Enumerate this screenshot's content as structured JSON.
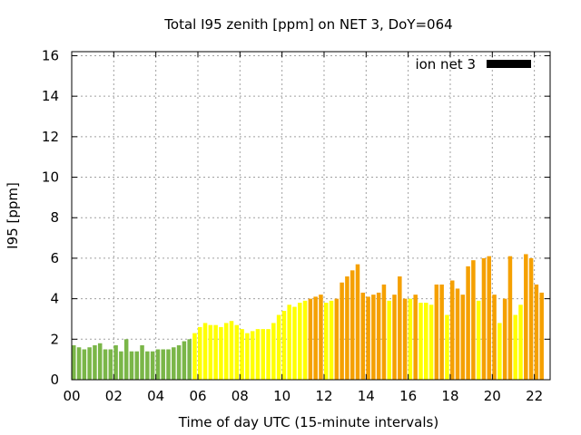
{
  "chart_data": {
    "type": "bar",
    "title": "Total I95 zenith [ppm] on NET 3, DoY=064",
    "xlabel": "Time of day UTC (15-minute intervals)",
    "ylabel": "I95 [ppm]",
    "xlim": [
      0,
      22.75
    ],
    "ylim": [
      0,
      16.2
    ],
    "bar_interval_hours": 0.25,
    "x_ticks": [
      {
        "value": 0,
        "label": "00"
      },
      {
        "value": 2,
        "label": "02"
      },
      {
        "value": 4,
        "label": "04"
      },
      {
        "value": 6,
        "label": "06"
      },
      {
        "value": 8,
        "label": "08"
      },
      {
        "value": 10,
        "label": "10"
      },
      {
        "value": 12,
        "label": "12"
      },
      {
        "value": 14,
        "label": "14"
      },
      {
        "value": 16,
        "label": "16"
      },
      {
        "value": 18,
        "label": "18"
      },
      {
        "value": 20,
        "label": "20"
      },
      {
        "value": 22,
        "label": "22"
      }
    ],
    "y_ticks": [
      {
        "value": 0,
        "label": "0"
      },
      {
        "value": 2,
        "label": "2"
      },
      {
        "value": 4,
        "label": "4"
      },
      {
        "value": 6,
        "label": "6"
      },
      {
        "value": 8,
        "label": "8"
      },
      {
        "value": 10,
        "label": "10"
      },
      {
        "value": 12,
        "label": "12"
      },
      {
        "value": 14,
        "label": "14"
      },
      {
        "value": 16,
        "label": "16"
      }
    ],
    "grid": true,
    "legend": {
      "label": "ion net 3",
      "color": "#000000",
      "placement": "top-right"
    },
    "colors": {
      "green": "#7ab648",
      "yellow": "#ffff00",
      "orange": "#f5a000"
    },
    "values": [
      1.7,
      1.6,
      1.5,
      1.6,
      1.7,
      1.8,
      1.5,
      1.5,
      1.7,
      1.4,
      2.0,
      1.4,
      1.4,
      1.7,
      1.4,
      1.4,
      1.5,
      1.5,
      1.5,
      1.6,
      1.7,
      1.9,
      2.0,
      2.3,
      2.6,
      2.8,
      2.7,
      2.7,
      2.6,
      2.8,
      2.9,
      2.7,
      2.5,
      2.3,
      2.4,
      2.5,
      2.5,
      2.5,
      2.8,
      3.2,
      3.4,
      3.7,
      3.6,
      3.8,
      3.9,
      4.0,
      4.1,
      4.2,
      3.8,
      3.9,
      4.0,
      4.8,
      5.1,
      5.4,
      5.7,
      4.3,
      4.1,
      4.2,
      4.3,
      4.7,
      3.9,
      4.2,
      5.1,
      4.0,
      4.0,
      4.2,
      3.8,
      3.8,
      3.7,
      4.7,
      4.7,
      3.2,
      4.9,
      4.5,
      4.2,
      5.6,
      5.9,
      3.9,
      6.0,
      6.1,
      4.2,
      2.8,
      4.0,
      6.1,
      3.2,
      3.7,
      6.2,
      6.0,
      4.7,
      4.3
    ],
    "bar_colors": [
      "green",
      "green",
      "green",
      "green",
      "green",
      "green",
      "green",
      "green",
      "green",
      "green",
      "green",
      "green",
      "green",
      "green",
      "green",
      "green",
      "green",
      "green",
      "green",
      "green",
      "green",
      "green",
      "green",
      "yellow",
      "yellow",
      "yellow",
      "yellow",
      "yellow",
      "yellow",
      "yellow",
      "yellow",
      "yellow",
      "yellow",
      "yellow",
      "yellow",
      "yellow",
      "yellow",
      "yellow",
      "yellow",
      "yellow",
      "yellow",
      "yellow",
      "yellow",
      "yellow",
      "yellow",
      "orange",
      "orange",
      "orange",
      "yellow",
      "yellow",
      "orange",
      "orange",
      "orange",
      "orange",
      "orange",
      "orange",
      "orange",
      "orange",
      "orange",
      "orange",
      "yellow",
      "orange",
      "orange",
      "orange",
      "yellow",
      "orange",
      "yellow",
      "yellow",
      "yellow",
      "orange",
      "orange",
      "yellow",
      "orange",
      "orange",
      "orange",
      "orange",
      "orange",
      "yellow",
      "orange",
      "orange",
      "orange",
      "yellow",
      "orange",
      "orange",
      "yellow",
      "yellow",
      "orange",
      "orange",
      "orange",
      "orange"
    ]
  }
}
